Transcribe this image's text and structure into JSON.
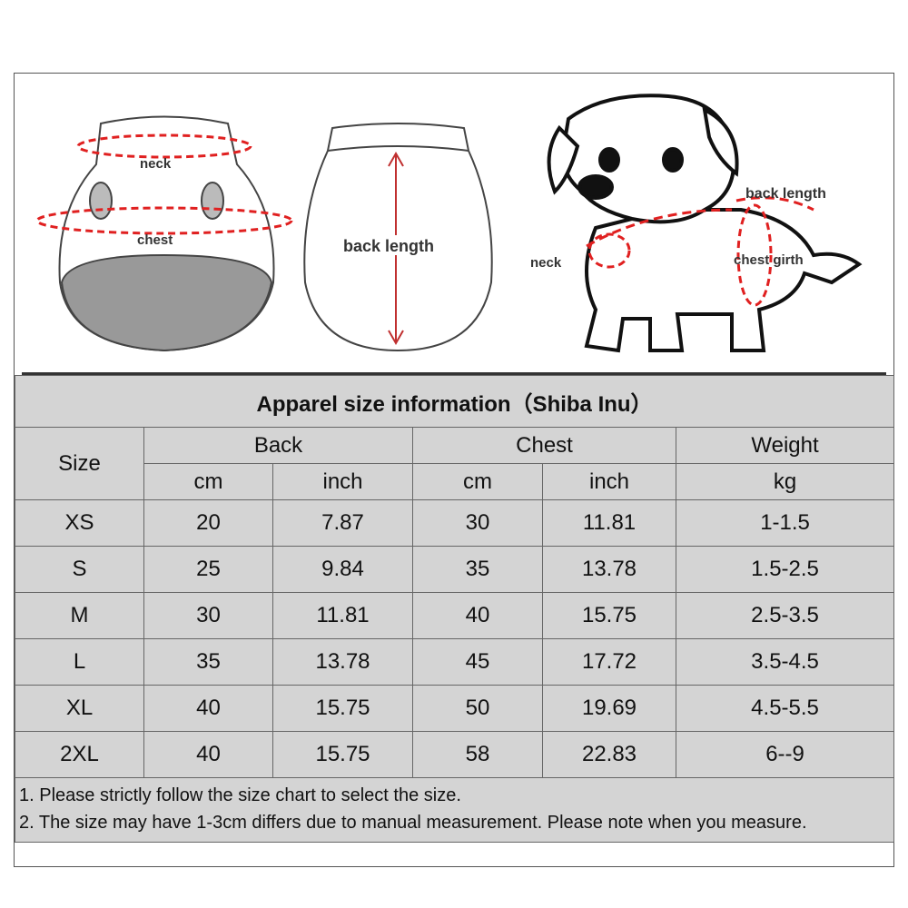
{
  "illustrations": {
    "vest_front": {
      "neck_label": "neck",
      "chest_label": "chest"
    },
    "vest_back": {
      "back_length_label": "back length"
    },
    "dog": {
      "back_length_label": "back length",
      "neck_label": "neck",
      "chest_girth_label": "chest girth"
    },
    "accent_color": "#e02020"
  },
  "table": {
    "title": "Apparel  size  information（Shiba Inu）",
    "headers": {
      "size": "Size",
      "back": "Back",
      "chest": "Chest",
      "weight": "Weight",
      "cm": "cm",
      "inch": "inch",
      "kg": "kg"
    },
    "rows": [
      {
        "size": "XS",
        "back_cm": "20",
        "back_inch": "7.87",
        "chest_cm": "30",
        "chest_inch": "11.81",
        "weight": "1-1.5"
      },
      {
        "size": "S",
        "back_cm": "25",
        "back_inch": "9.84",
        "chest_cm": "35",
        "chest_inch": "13.78",
        "weight": "1.5-2.5"
      },
      {
        "size": "M",
        "back_cm": "30",
        "back_inch": "11.81",
        "chest_cm": "40",
        "chest_inch": "15.75",
        "weight": "2.5-3.5"
      },
      {
        "size": "L",
        "back_cm": "35",
        "back_inch": "13.78",
        "chest_cm": "45",
        "chest_inch": "17.72",
        "weight": "3.5-4.5"
      },
      {
        "size": "XL",
        "back_cm": "40",
        "back_inch": "15.75",
        "chest_cm": "50",
        "chest_inch": "19.69",
        "weight": "4.5-5.5"
      },
      {
        "size": "2XL",
        "back_cm": "40",
        "back_inch": "15.75",
        "chest_cm": "58",
        "chest_inch": "22.83",
        "weight": "6--9"
      }
    ],
    "notes": [
      "1. Please strictly follow the size chart  to select the size.",
      "2. The size may have 1-3cm differs due to manual measurement. Please note when you measure."
    ]
  }
}
